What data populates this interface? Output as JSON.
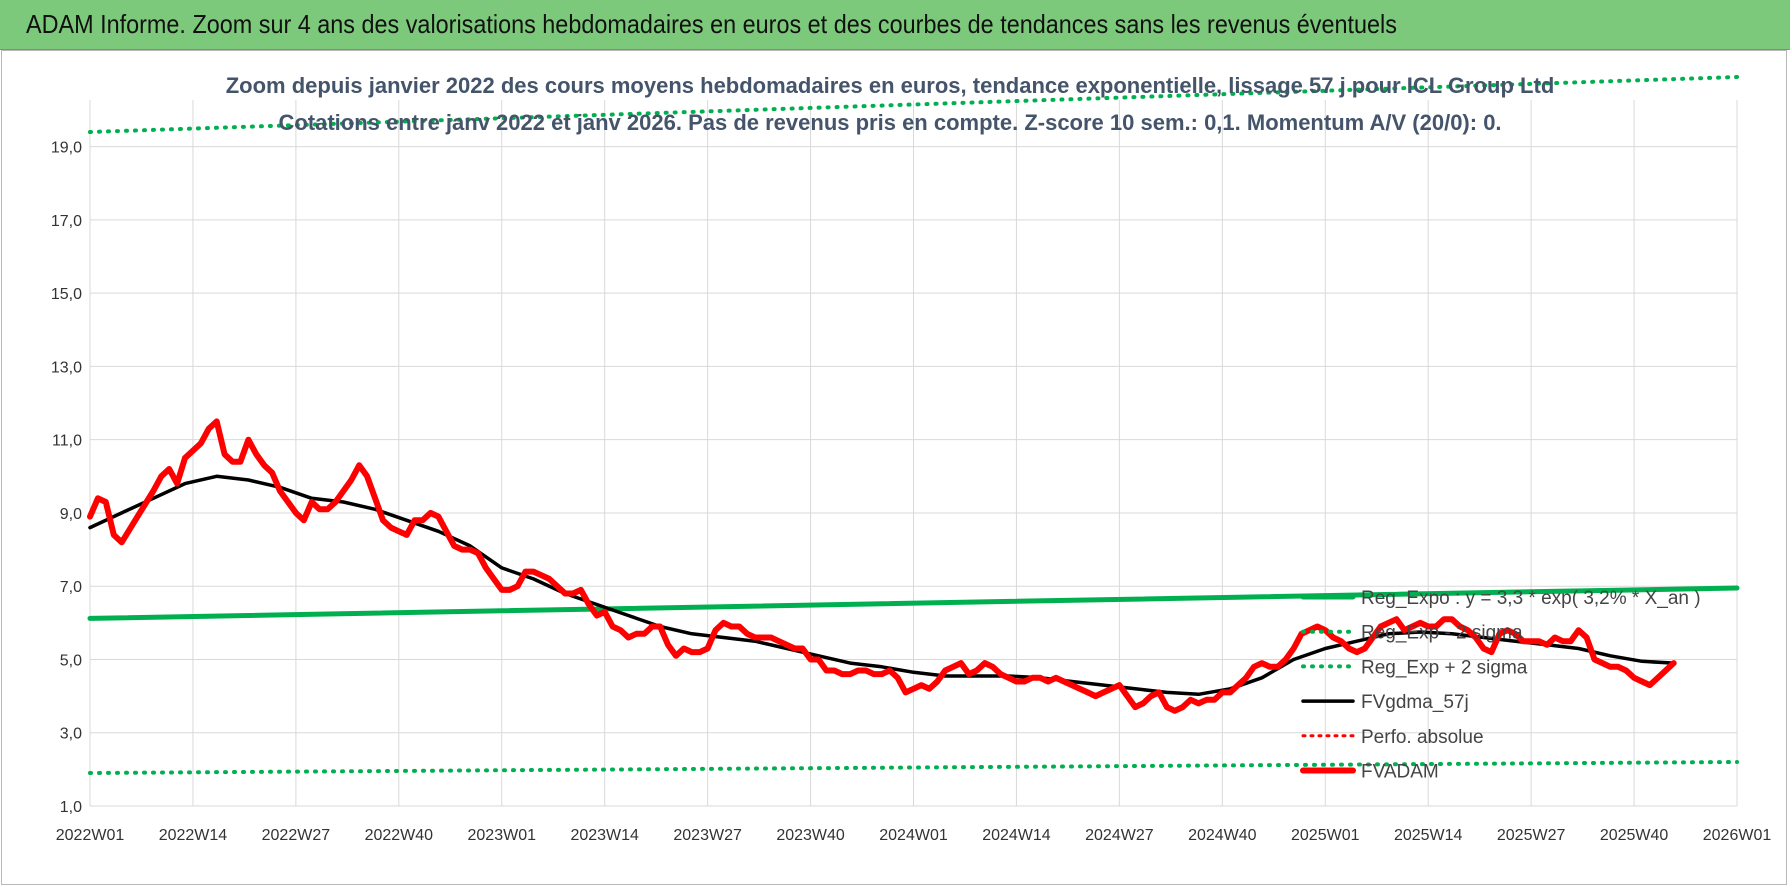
{
  "banner": {
    "title": "ADAM Informe. Zoom sur 4 ans des valorisations hebdomadaires en euros et des courbes de tendances sans les revenus éventuels"
  },
  "colors": {
    "banner_bg": "#7dc97b",
    "fvadam": "#ff0000",
    "fvgdma": "#000000",
    "reg_expo": "#00b050",
    "sigma": "#00b050",
    "perfo": "#ff0000"
  },
  "chart_data": {
    "type": "line",
    "title": "Zoom depuis janvier 2022 des cours moyens hebdomadaires en euros, tendance exponentielle, lissage 57 j pour ICL Group Ltd",
    "subtitle": "Cotations entre janv 2022 et janv 2026. Pas de revenus pris en compte. Z-score 10 sem.: 0,1. Momentum A/V (20/0): 0.",
    "xlabel": "",
    "ylabel": "",
    "ylim": [
      1,
      20
    ],
    "y_ticks": [
      "1,0",
      "3,0",
      "5,0",
      "7,0",
      "9,0",
      "11,0",
      "13,0",
      "15,0",
      "17,0",
      "19,0"
    ],
    "y_tick_values": [
      1,
      3,
      5,
      7,
      9,
      11,
      13,
      15,
      17,
      19
    ],
    "x_ticks": [
      "2022W01",
      "2022W14",
      "2022W27",
      "2022W40",
      "2023W01",
      "2023W14",
      "2023W27",
      "2023W40",
      "2024W01",
      "2024W14",
      "2024W27",
      "2024W40",
      "2025W01",
      "2025W14",
      "2025W27",
      "2025W40",
      "2026W01"
    ],
    "grid": true,
    "legend_position": "right",
    "series": [
      {
        "name": "Reg_Expo : y = 3,3 * exp( 3,2% * X_an )",
        "style": "solid",
        "points": [
          [
            0,
            6.12
          ],
          [
            208,
            6.95
          ]
        ]
      },
      {
        "name": "Reg_Exp - 2 sigma",
        "style": "dotted",
        "points": [
          [
            0,
            1.9
          ],
          [
            208,
            2.2
          ]
        ]
      },
      {
        "name": "Reg_Exp + 2 sigma",
        "style": "dotted",
        "points": [
          [
            0,
            19.4
          ],
          [
            208,
            20.9
          ]
        ]
      },
      {
        "name": "FVgdma_57j",
        "style": "solid",
        "points": [
          [
            0,
            8.6
          ],
          [
            4,
            9.0
          ],
          [
            8,
            9.4
          ],
          [
            12,
            9.8
          ],
          [
            16,
            10.0
          ],
          [
            20,
            9.9
          ],
          [
            24,
            9.7
          ],
          [
            28,
            9.4
          ],
          [
            32,
            9.3
          ],
          [
            36,
            9.1
          ],
          [
            40,
            8.8
          ],
          [
            44,
            8.5
          ],
          [
            48,
            8.1
          ],
          [
            52,
            7.5
          ],
          [
            56,
            7.2
          ],
          [
            60,
            6.8
          ],
          [
            64,
            6.5
          ],
          [
            68,
            6.2
          ],
          [
            72,
            5.9
          ],
          [
            76,
            5.7
          ],
          [
            80,
            5.6
          ],
          [
            84,
            5.5
          ],
          [
            88,
            5.3
          ],
          [
            92,
            5.1
          ],
          [
            96,
            4.9
          ],
          [
            100,
            4.8
          ],
          [
            104,
            4.65
          ],
          [
            108,
            4.55
          ],
          [
            112,
            4.55
          ],
          [
            116,
            4.55
          ],
          [
            120,
            4.5
          ],
          [
            124,
            4.4
          ],
          [
            128,
            4.3
          ],
          [
            132,
            4.2
          ],
          [
            136,
            4.1
          ],
          [
            140,
            4.05
          ],
          [
            144,
            4.2
          ],
          [
            148,
            4.5
          ],
          [
            152,
            5.0
          ],
          [
            156,
            5.3
          ],
          [
            160,
            5.5
          ],
          [
            164,
            5.7
          ],
          [
            168,
            5.75
          ],
          [
            172,
            5.7
          ],
          [
            176,
            5.6
          ],
          [
            180,
            5.5
          ],
          [
            184,
            5.4
          ],
          [
            188,
            5.3
          ],
          [
            192,
            5.1
          ],
          [
            196,
            4.95
          ],
          [
            200,
            4.9
          ]
        ]
      },
      {
        "name": "Perfo. absolue",
        "style": "dotted",
        "points": []
      },
      {
        "name": "FVADAM",
        "style": "solid",
        "points": [
          [
            0,
            8.9
          ],
          [
            1,
            9.4
          ],
          [
            2,
            9.3
          ],
          [
            3,
            8.4
          ],
          [
            4,
            8.2
          ],
          [
            6,
            8.9
          ],
          [
            8,
            9.6
          ],
          [
            9,
            10.0
          ],
          [
            10,
            10.2
          ],
          [
            11,
            9.8
          ],
          [
            12,
            10.5
          ],
          [
            13,
            10.7
          ],
          [
            14,
            10.9
          ],
          [
            15,
            11.3
          ],
          [
            16,
            11.5
          ],
          [
            17,
            10.6
          ],
          [
            18,
            10.4
          ],
          [
            19,
            10.4
          ],
          [
            20,
            11.0
          ],
          [
            21,
            10.6
          ],
          [
            22,
            10.3
          ],
          [
            23,
            10.1
          ],
          [
            24,
            9.6
          ],
          [
            25,
            9.3
          ],
          [
            26,
            9.0
          ],
          [
            27,
            8.8
          ],
          [
            28,
            9.3
          ],
          [
            29,
            9.1
          ],
          [
            30,
            9.1
          ],
          [
            31,
            9.3
          ],
          [
            32,
            9.6
          ],
          [
            33,
            9.9
          ],
          [
            34,
            10.3
          ],
          [
            35,
            10.0
          ],
          [
            36,
            9.4
          ],
          [
            37,
            8.8
          ],
          [
            38,
            8.6
          ],
          [
            39,
            8.5
          ],
          [
            40,
            8.4
          ],
          [
            41,
            8.8
          ],
          [
            42,
            8.8
          ],
          [
            43,
            9.0
          ],
          [
            44,
            8.9
          ],
          [
            45,
            8.5
          ],
          [
            46,
            8.1
          ],
          [
            47,
            8.0
          ],
          [
            48,
            8.0
          ],
          [
            49,
            7.9
          ],
          [
            50,
            7.5
          ],
          [
            51,
            7.2
          ],
          [
            52,
            6.9
          ],
          [
            53,
            6.9
          ],
          [
            54,
            7.0
          ],
          [
            55,
            7.4
          ],
          [
            56,
            7.4
          ],
          [
            57,
            7.3
          ],
          [
            58,
            7.2
          ],
          [
            59,
            7.0
          ],
          [
            60,
            6.8
          ],
          [
            61,
            6.8
          ],
          [
            62,
            6.9
          ],
          [
            63,
            6.5
          ],
          [
            64,
            6.2
          ],
          [
            65,
            6.3
          ],
          [
            66,
            5.9
          ],
          [
            67,
            5.8
          ],
          [
            68,
            5.6
          ],
          [
            69,
            5.7
          ],
          [
            70,
            5.7
          ],
          [
            71,
            5.9
          ],
          [
            72,
            5.9
          ],
          [
            73,
            5.4
          ],
          [
            74,
            5.1
          ],
          [
            75,
            5.3
          ],
          [
            76,
            5.2
          ],
          [
            77,
            5.2
          ],
          [
            78,
            5.3
          ],
          [
            79,
            5.8
          ],
          [
            80,
            6.0
          ],
          [
            81,
            5.9
          ],
          [
            82,
            5.9
          ],
          [
            83,
            5.7
          ],
          [
            84,
            5.6
          ],
          [
            85,
            5.6
          ],
          [
            86,
            5.6
          ],
          [
            87,
            5.5
          ],
          [
            88,
            5.4
          ],
          [
            89,
            5.3
          ],
          [
            90,
            5.3
          ],
          [
            91,
            5.0
          ],
          [
            92,
            5.0
          ],
          [
            93,
            4.7
          ],
          [
            94,
            4.7
          ],
          [
            95,
            4.6
          ],
          [
            96,
            4.6
          ],
          [
            97,
            4.7
          ],
          [
            98,
            4.7
          ],
          [
            99,
            4.6
          ],
          [
            100,
            4.6
          ],
          [
            101,
            4.7
          ],
          [
            102,
            4.5
          ],
          [
            103,
            4.1
          ],
          [
            104,
            4.2
          ],
          [
            105,
            4.3
          ],
          [
            106,
            4.2
          ],
          [
            107,
            4.4
          ],
          [
            108,
            4.7
          ],
          [
            109,
            4.8
          ],
          [
            110,
            4.9
          ],
          [
            111,
            4.6
          ],
          [
            112,
            4.7
          ],
          [
            113,
            4.9
          ],
          [
            114,
            4.8
          ],
          [
            115,
            4.6
          ],
          [
            116,
            4.5
          ],
          [
            117,
            4.4
          ],
          [
            118,
            4.4
          ],
          [
            119,
            4.5
          ],
          [
            120,
            4.5
          ],
          [
            121,
            4.4
          ],
          [
            122,
            4.5
          ],
          [
            123,
            4.4
          ],
          [
            124,
            4.3
          ],
          [
            125,
            4.2
          ],
          [
            126,
            4.1
          ],
          [
            127,
            4.0
          ],
          [
            128,
            4.1
          ],
          [
            129,
            4.2
          ],
          [
            130,
            4.3
          ],
          [
            131,
            4.0
          ],
          [
            132,
            3.7
          ],
          [
            133,
            3.8
          ],
          [
            134,
            4.0
          ],
          [
            135,
            4.1
          ],
          [
            136,
            3.7
          ],
          [
            137,
            3.6
          ],
          [
            138,
            3.7
          ],
          [
            139,
            3.9
          ],
          [
            140,
            3.8
          ],
          [
            141,
            3.9
          ],
          [
            142,
            3.9
          ],
          [
            143,
            4.1
          ],
          [
            144,
            4.1
          ],
          [
            145,
            4.3
          ],
          [
            146,
            4.5
          ],
          [
            147,
            4.8
          ],
          [
            148,
            4.9
          ],
          [
            149,
            4.8
          ],
          [
            150,
            4.8
          ],
          [
            151,
            5.0
          ],
          [
            152,
            5.3
          ],
          [
            153,
            5.7
          ],
          [
            154,
            5.8
          ],
          [
            155,
            5.9
          ],
          [
            156,
            5.8
          ],
          [
            157,
            5.6
          ],
          [
            158,
            5.5
          ],
          [
            159,
            5.3
          ],
          [
            160,
            5.2
          ],
          [
            161,
            5.3
          ],
          [
            162,
            5.6
          ],
          [
            163,
            5.9
          ],
          [
            164,
            6.0
          ],
          [
            165,
            6.1
          ],
          [
            166,
            5.8
          ],
          [
            167,
            5.9
          ],
          [
            168,
            6.0
          ],
          [
            169,
            5.9
          ],
          [
            170,
            5.9
          ],
          [
            171,
            6.1
          ],
          [
            172,
            6.1
          ],
          [
            173,
            5.9
          ],
          [
            174,
            5.8
          ],
          [
            175,
            5.6
          ],
          [
            176,
            5.3
          ],
          [
            177,
            5.2
          ],
          [
            178,
            5.7
          ],
          [
            179,
            5.8
          ],
          [
            180,
            5.7
          ],
          [
            181,
            5.5
          ],
          [
            182,
            5.5
          ],
          [
            183,
            5.5
          ],
          [
            184,
            5.4
          ],
          [
            185,
            5.6
          ],
          [
            186,
            5.5
          ],
          [
            187,
            5.5
          ],
          [
            188,
            5.8
          ],
          [
            189,
            5.6
          ],
          [
            190,
            5.0
          ],
          [
            191,
            4.9
          ],
          [
            192,
            4.8
          ],
          [
            193,
            4.8
          ],
          [
            194,
            4.7
          ],
          [
            195,
            4.5
          ],
          [
            196,
            4.4
          ],
          [
            197,
            4.3
          ],
          [
            198,
            4.5
          ],
          [
            199,
            4.7
          ],
          [
            200,
            4.9
          ]
        ]
      }
    ]
  }
}
